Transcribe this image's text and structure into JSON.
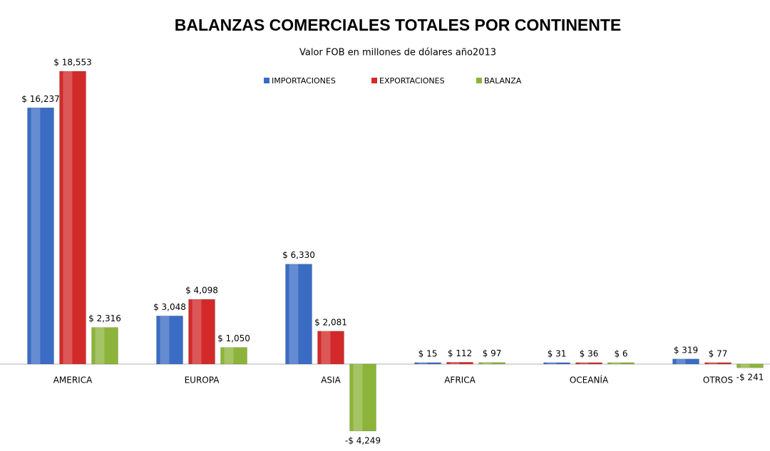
{
  "chart_data": {
    "type": "bar",
    "title": "BALANZAS COMERCIALES TOTALES POR CONTINENTE",
    "subtitle": "Valor FOB en millones de dólares  año2013",
    "categories": [
      "AMERICA",
      "EUROPA",
      "ASIA",
      "AFRICA",
      "OCEANÍA",
      "OTROS"
    ],
    "series": [
      {
        "name": "IMPORTACIONES",
        "color": "#3a6cc3",
        "values": [
          16237,
          3048,
          6330,
          15,
          31,
          319
        ],
        "value_labels": [
          "$ 16,237",
          "$ 3,048",
          "$ 6,330",
          "$ 15",
          "$ 31",
          "$ 319"
        ]
      },
      {
        "name": "EXPORTACIONES",
        "color": "#d22a2a",
        "values": [
          18553,
          4098,
          2081,
          112,
          36,
          77
        ],
        "value_labels": [
          "$ 18,553",
          "$ 4,098",
          "$ 2,081",
          "$ 112",
          "$ 36",
          "$ 77"
        ]
      },
      {
        "name": "BALANZA",
        "color": "#8cb43a",
        "values": [
          2316,
          1050,
          -4249,
          97,
          6,
          -241
        ],
        "value_labels": [
          "$ 2,316",
          "$ 1,050",
          "-$ 4,249",
          "$ 97",
          "$ 6",
          "-$ 241"
        ]
      }
    ],
    "legend": "top"
  }
}
